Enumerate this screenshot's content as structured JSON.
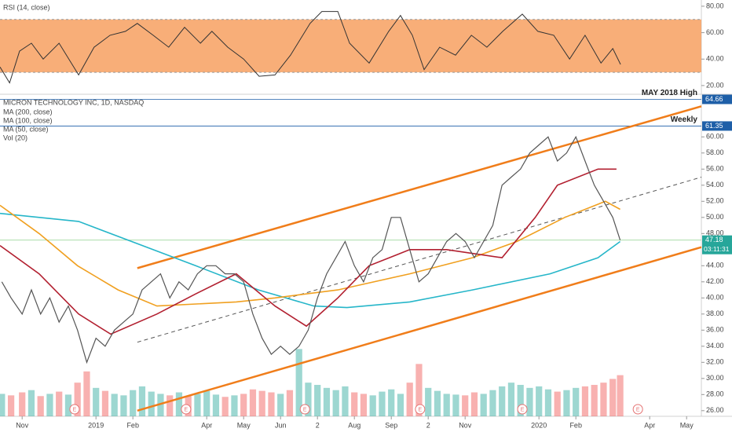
{
  "chart_data": {
    "type": "line",
    "title": "MICRON TECHNOLOGY INC, 1D, NASDAQ",
    "xlim": [
      -0.6,
      18.4
    ],
    "xticks": [
      {
        "value": 0,
        "label": "Nov"
      },
      {
        "value": 2,
        "label": "2019"
      },
      {
        "value": 3,
        "label": "Feb"
      },
      {
        "value": 5,
        "label": "Apr"
      },
      {
        "value": 6,
        "label": "May"
      },
      {
        "value": 7,
        "label": "Jun"
      },
      {
        "value": 8,
        "label": "2"
      },
      {
        "value": 9,
        "label": "Aug"
      },
      {
        "value": 10,
        "label": "Sep"
      },
      {
        "value": 11,
        "label": "2"
      },
      {
        "value": 12,
        "label": "Nov"
      },
      {
        "value": 14,
        "label": "2020"
      },
      {
        "value": 15,
        "label": "Feb"
      },
      {
        "value": 17,
        "label": "Apr"
      },
      {
        "value": 18,
        "label": "May"
      }
    ],
    "ylim": [
      25.3,
      65.1
    ],
    "yticks": [
      {
        "value": 26,
        "label": "26.00"
      },
      {
        "value": 28,
        "label": "28.00"
      },
      {
        "value": 30,
        "label": "30.00"
      },
      {
        "value": 32,
        "label": "32.00"
      },
      {
        "value": 34,
        "label": "34.00"
      },
      {
        "value": 36,
        "label": "36.00"
      },
      {
        "value": 38,
        "label": "38.00"
      },
      {
        "value": 40,
        "label": "40.00"
      },
      {
        "value": 42,
        "label": "42.00"
      },
      {
        "value": 44,
        "label": "44.00"
      },
      {
        "value": 48,
        "label": "48.00"
      },
      {
        "value": 50,
        "label": "50.00"
      },
      {
        "value": 52,
        "label": "52.00"
      },
      {
        "value": 54,
        "label": "54.00"
      },
      {
        "value": 56,
        "label": "56.00"
      },
      {
        "value": 58,
        "label": "58.00"
      },
      {
        "value": 60,
        "label": "60.00"
      }
    ],
    "price": {
      "color": "#555555",
      "x": [
        -0.55,
        -0.3,
        0,
        0.25,
        0.5,
        0.75,
        1,
        1.25,
        1.5,
        1.75,
        2,
        2.25,
        2.5,
        2.75,
        3,
        3.25,
        3.5,
        3.75,
        4,
        4.25,
        4.5,
        4.75,
        5,
        5.25,
        5.5,
        5.75,
        6,
        6.25,
        6.5,
        6.75,
        7,
        7.25,
        7.5,
        7.75,
        8,
        8.25,
        8.5,
        8.75,
        9,
        9.25,
        9.5,
        9.75,
        10,
        10.25,
        10.5,
        10.75,
        11,
        11.25,
        11.5,
        11.75,
        12,
        12.25,
        12.5,
        12.75,
        13,
        13.25,
        13.5,
        13.75,
        14,
        14.25,
        14.5,
        14.75,
        15,
        15.25,
        15.5,
        15.75,
        16,
        16.2
      ],
      "values": [
        42,
        40,
        38,
        41,
        38,
        40,
        37,
        39,
        36,
        32,
        35,
        34,
        36,
        37,
        38,
        41,
        42,
        43,
        40,
        42,
        41,
        43,
        44,
        44,
        43,
        43,
        42,
        38,
        35,
        33,
        34,
        33,
        34,
        36,
        40,
        43,
        45,
        47,
        44,
        42,
        45,
        46,
        50,
        50,
        46,
        42,
        43,
        45,
        47,
        48,
        47,
        45,
        47,
        49,
        54,
        55,
        56,
        58,
        59,
        60,
        57,
        58,
        60,
        57,
        54,
        52,
        50,
        47.18
      ]
    },
    "volume": {
      "name": "Vol (20)",
      "vlim": [
        0,
        150
      ],
      "up_color": "#26a69a",
      "down_color": "#ef5350",
      "values": [
        30,
        28,
        32,
        35,
        27,
        30,
        33,
        29,
        45,
        60,
        38,
        34,
        30,
        28,
        35,
        40,
        33,
        30,
        28,
        32,
        27,
        30,
        34,
        29,
        26,
        28,
        30,
        36,
        34,
        32,
        30,
        35,
        90,
        45,
        42,
        38,
        35,
        40,
        32,
        30,
        28,
        33,
        36,
        30,
        45,
        70,
        38,
        34,
        30,
        29,
        28,
        32,
        30,
        35,
        40,
        45,
        42,
        38,
        40,
        36,
        33,
        35,
        38,
        40,
        42,
        45,
        50,
        55
      ]
    },
    "series": [
      {
        "name": "MA (200, close)",
        "color": "#26b6c9",
        "x": [
          -0.6,
          1.53,
          4.7,
          6.4,
          7.9,
          8.8,
          10.5,
          12.2,
          14.3,
          15.6,
          16.2
        ],
        "values": [
          50.5,
          49.5,
          44,
          41,
          39,
          38.8,
          39.5,
          41,
          43,
          45,
          47
        ]
      },
      {
        "name": "MA (100, close)",
        "color": "#f0a020",
        "x": [
          -0.6,
          0.46,
          1.5,
          2.6,
          3.65,
          5.8,
          6.85,
          8.55,
          10.5,
          12.2,
          13.4,
          14.7,
          15.8,
          16.2
        ],
        "values": [
          51.5,
          48,
          44,
          41,
          39,
          39.5,
          40,
          41,
          43,
          45,
          47,
          50,
          52,
          51
        ]
      },
      {
        "name": "MA (50, close)",
        "color": "#b22030",
        "x": [
          -0.6,
          0.46,
          1.53,
          2.4,
          3.65,
          4.7,
          5.8,
          6.85,
          7.7,
          8.55,
          9.4,
          10.5,
          11.5,
          13.0,
          13.9,
          14.5,
          15.6,
          16.1
        ],
        "values": [
          46.5,
          43,
          38,
          35.5,
          38,
          40.5,
          43,
          39,
          36.5,
          40,
          44,
          46,
          46,
          45,
          50,
          54,
          56,
          56
        ]
      }
    ],
    "channel": {
      "color": "#f07d1a",
      "x": [
        3.12,
        18.4
      ],
      "upper": [
        43.7,
        63.8
      ],
      "lower": [
        26.0,
        46.3
      ],
      "mid": [
        34.5,
        55.0
      ]
    },
    "levels": [
      {
        "value": 64.66,
        "label": "64.66",
        "note": "MAY 2018 High",
        "color": "#1e5fa8"
      },
      {
        "value": 61.35,
        "label": "61.35",
        "note": "Weekly",
        "color": "#1e5fa8"
      }
    ],
    "current": {
      "value": 47.18,
      "label": "47.18",
      "countdown": "03:11:31",
      "color": "#26a69a"
    },
    "earnings": {
      "label": "E",
      "x": [
        1.42,
        4.44,
        7.66,
        10.78,
        13.55,
        16.68
      ]
    },
    "rsi": {
      "name": "RSI (14, close)",
      "ylim": [
        14.6,
        84.7
      ],
      "yticks": [
        {
          "value": 20,
          "label": "20.00"
        },
        {
          "value": 40,
          "label": "40.00"
        },
        {
          "value": 60,
          "label": "60.00"
        },
        {
          "value": 80,
          "label": "80.00"
        }
      ],
      "band": [
        30,
        70
      ],
      "band_color": "#f7a060",
      "color": "#333333",
      "x": [
        -0.6,
        -0.34,
        -0.07,
        0.25,
        0.57,
        1.0,
        1.53,
        1.95,
        2.38,
        2.8,
        3.12,
        3.55,
        3.97,
        4.4,
        4.83,
        5.14,
        5.57,
        6.0,
        6.42,
        6.85,
        7.27,
        7.8,
        8.12,
        8.55,
        8.87,
        9.4,
        9.93,
        10.25,
        10.57,
        10.89,
        11.31,
        11.74,
        12.17,
        12.59,
        13.02,
        13.55,
        13.97,
        14.4,
        14.83,
        15.25,
        15.68,
        16.0,
        16.21
      ],
      "values": [
        34,
        22,
        46,
        52,
        40,
        52,
        28,
        49,
        58,
        61,
        67,
        58,
        49,
        64,
        52,
        61,
        49,
        40,
        27,
        28,
        43,
        67,
        76,
        76,
        52,
        37,
        61,
        73,
        58,
        32,
        49,
        43,
        58,
        49,
        61,
        74,
        61,
        58,
        40,
        58,
        37,
        48,
        36
      ]
    }
  }
}
